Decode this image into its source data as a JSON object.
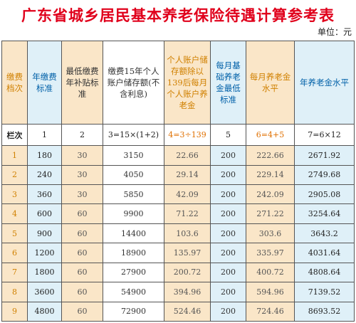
{
  "title": "广东省城乡居民基本养老保险待遇计算参考表",
  "unit": "单位：元",
  "headers": [
    "缴费档次",
    "年缴费标准",
    "最低缴费年补贴标准",
    "缴费15年个人账户储存额(不含利息)",
    "个人账户储存额除以139后每月个人账户养老金",
    "每月基础养老金最低标准",
    "每月养老金水平",
    "年养老金水平"
  ],
  "index_row": [
    "栏次",
    "1",
    "2",
    "3=15×(1+2)",
    "4=3÷139",
    "5",
    "6=4+5",
    "7=6×12"
  ],
  "rows": [
    [
      "1",
      "180",
      "30",
      "3150",
      "22.66",
      "200",
      "222.66",
      "2671.92"
    ],
    [
      "2",
      "240",
      "30",
      "4050",
      "29.14",
      "200",
      "229.14",
      "2749.68"
    ],
    [
      "3",
      "360",
      "30",
      "5850",
      "42.09",
      "200",
      "242.09",
      "2905.08"
    ],
    [
      "4",
      "600",
      "60",
      "9900",
      "71.22",
      "200",
      "271.22",
      "3254.64"
    ],
    [
      "5",
      "900",
      "60",
      "14400",
      "103.6",
      "200",
      "303.6",
      "3643.2"
    ],
    [
      "6",
      "1200",
      "60",
      "18900",
      "135.97",
      "200",
      "335.97",
      "4031.64"
    ],
    [
      "7",
      "1800",
      "60",
      "27900",
      "200.72",
      "200",
      "400.72",
      "4808.64"
    ],
    [
      "8",
      "3600",
      "60",
      "54900",
      "394.96",
      "200",
      "594.96",
      "7139.52"
    ],
    [
      "9",
      "4800",
      "60",
      "72900",
      "524.46",
      "200",
      "724.46",
      "8693.52"
    ]
  ]
}
